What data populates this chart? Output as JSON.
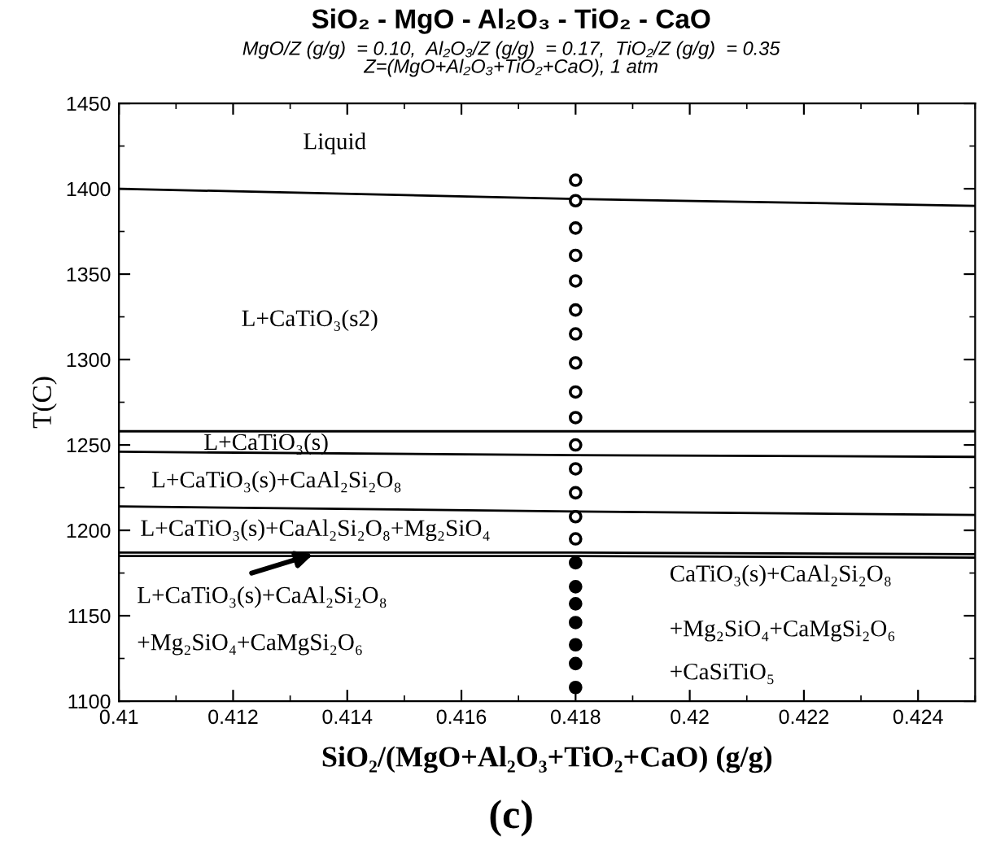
{
  "chart_data": {
    "type": "line",
    "title": "SiO₂ - MgO - Al₂O₃ - TiO₂ - CaO",
    "subtitle": "MgO/Z (g/g)  = 0.10,  Al₂O₃/Z (g/g)  = 0.17,  TiO₂/Z (g/g)  = 0.35\nZ=(MgO+Al₂O₃+TiO₂+CaO), 1 atm",
    "xlabel": "SiO₂/(MgO+Al₂O₃+TiO₂+CaO) (g/g)",
    "ylabel": "T(C)",
    "xlim": [
      0.41,
      0.425
    ],
    "ylim": [
      1100,
      1450
    ],
    "xticks": [
      0.41,
      0.412,
      0.414,
      0.416,
      0.418,
      0.42,
      0.422,
      0.424
    ],
    "yticks": [
      1100,
      1150,
      1200,
      1250,
      1300,
      1350,
      1400,
      1450
    ],
    "grid": false,
    "legend": false,
    "series": [
      {
        "color": "#000000",
        "x": [
          0.41,
          0.418,
          0.425
        ],
        "values": [
          1400,
          1394,
          1390
        ]
      },
      {
        "color": "#000000",
        "x": [
          0.41,
          0.418,
          0.425
        ],
        "values": [
          1258,
          1258,
          1258
        ]
      },
      {
        "color": "#000000",
        "x": [
          0.41,
          0.418,
          0.425
        ],
        "values": [
          1246,
          1244,
          1243
        ]
      },
      {
        "color": "#000000",
        "x": [
          0.41,
          0.418,
          0.425
        ],
        "values": [
          1214,
          1211,
          1209
        ]
      },
      {
        "color": "#000000",
        "x": [
          0.41,
          0.418,
          0.425
        ],
        "values": [
          1187,
          1187,
          1186
        ]
      },
      {
        "color": "#000000",
        "x": [
          0.41,
          0.418,
          0.425
        ],
        "values": [
          1185,
          1185,
          1184
        ]
      },
      {
        "type": "scatter",
        "marker": "circle",
        "color": "#ffffff",
        "x": [
          0.418,
          0.418,
          0.418,
          0.418,
          0.418,
          0.418,
          0.418,
          0.418,
          0.418,
          0.418,
          0.418,
          0.418,
          0.418,
          0.418,
          0.418
        ],
        "values": [
          1405,
          1393,
          1377,
          1361,
          1346,
          1329,
          1315,
          1298,
          1281,
          1266,
          1250,
          1236,
          1222,
          1208,
          1195
        ]
      },
      {
        "type": "scatter",
        "marker": "circle",
        "color": "#000000",
        "x": [
          0.418,
          0.418,
          0.418,
          0.418,
          0.418,
          0.418,
          0.418
        ],
        "values": [
          1181,
          1167,
          1157,
          1146,
          1133,
          1122,
          1108
        ]
      }
    ],
    "annotations": [
      "Liquid",
      "L+CaTiO₃(s2)",
      "L+CaTiO₃(s)",
      "L+CaTiO₃(s)+CaAl₂Si₂O₈",
      "L+CaTiO₃(s)+CaAl₂Si₂O₈+Mg₂SiO₄",
      "L+CaTiO₃(s)+CaAl₂Si₂O₈",
      "+Mg₂SiO₄+CaMgSi₂O₆",
      "CaTiO₃(s)+CaAl₂Si₂O₈",
      "+Mg₂SiO₄+CaMgSi₂O₆",
      "+CaSiTiO₅",
      "(c)"
    ]
  }
}
